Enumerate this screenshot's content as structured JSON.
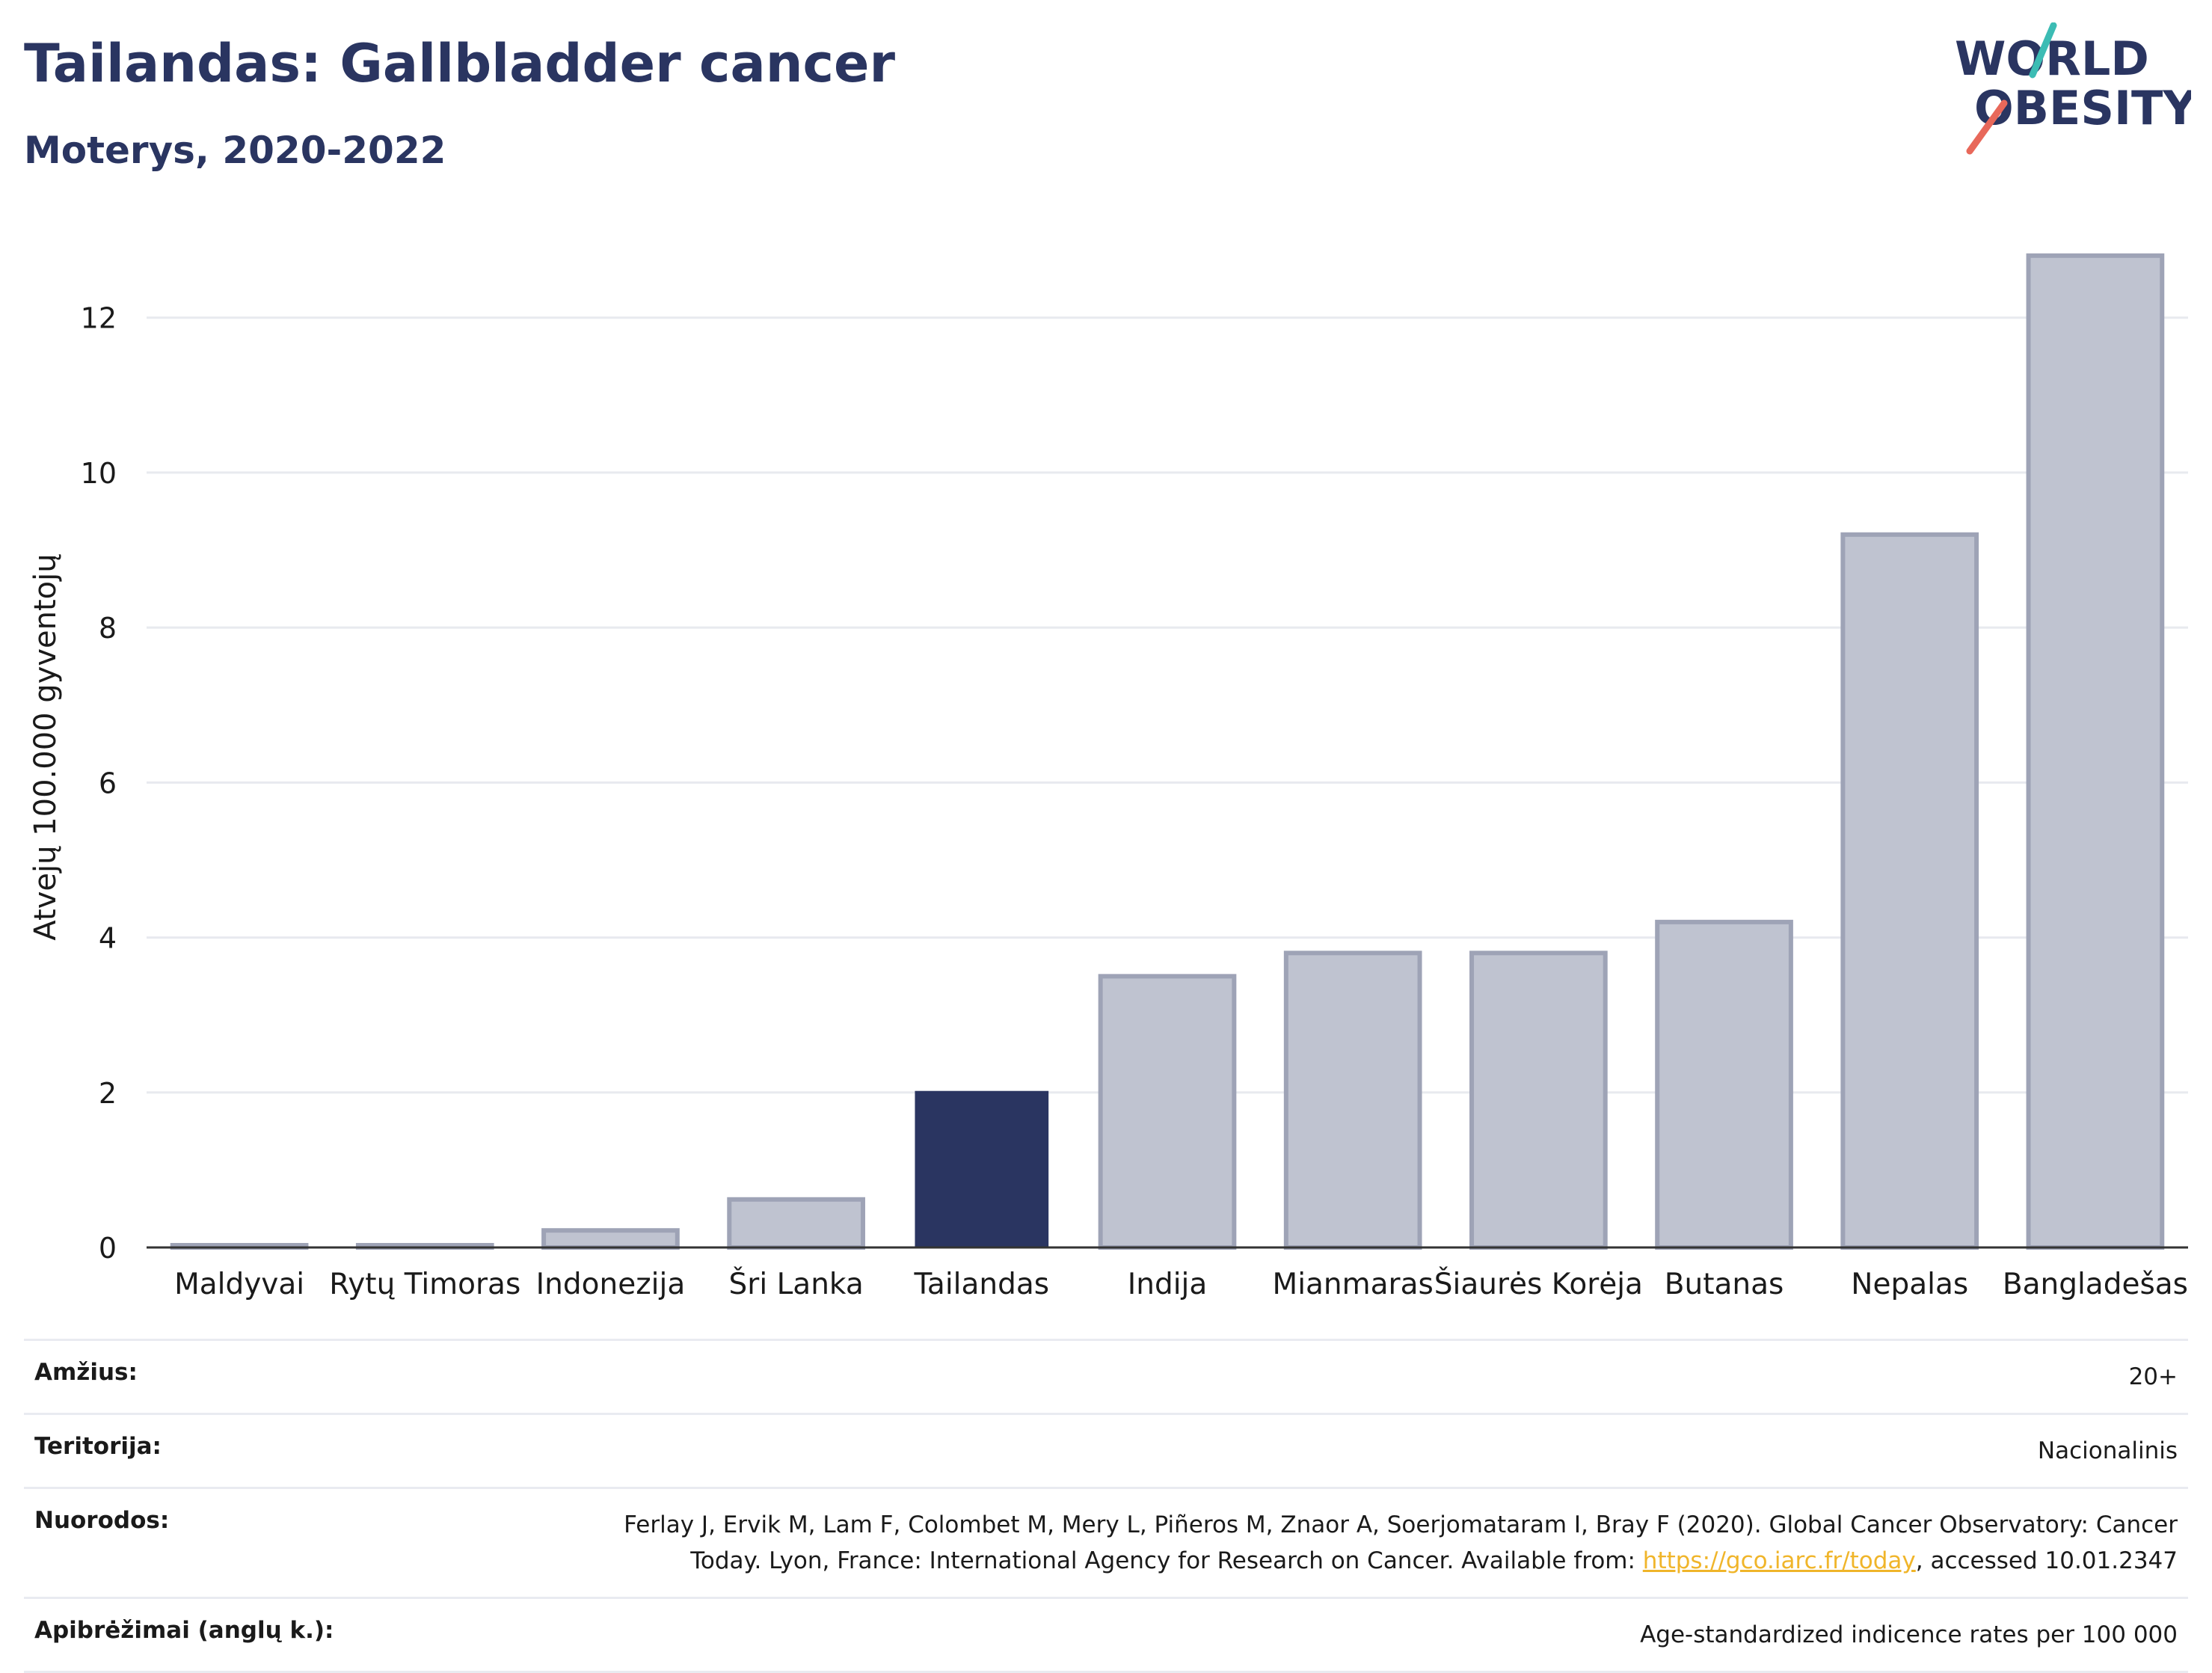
{
  "header": {
    "title": "Tailandas: Gallbladder cancer",
    "subtitle": "Moterys, 2020-2022"
  },
  "logo": {
    "line1": "WORLD",
    "line2": "OBESITY"
  },
  "chart_data": {
    "type": "bar",
    "title": "Tailandas: Gallbladder cancer",
    "subtitle": "Moterys, 2020-2022",
    "ylabel": "Atvejų 100.000 gyventojų",
    "xlabel": "",
    "ylim": [
      0,
      13.3
    ],
    "yticks": [
      0,
      2,
      4,
      6,
      8,
      10,
      12
    ],
    "grid": true,
    "categories": [
      "Maldyvai",
      "Rytų Timoras",
      "Indonezija",
      "Šri Lanka",
      "Tailandas",
      "Indija",
      "Mianmaras",
      "Šiaurės Korėja",
      "Butanas",
      "Nepalas",
      "Bangladešas"
    ],
    "values": [
      0.02,
      0.02,
      0.22,
      0.62,
      2.02,
      3.5,
      3.8,
      3.8,
      4.2,
      9.2,
      12.8
    ],
    "highlight": "Tailandas",
    "colors": {
      "highlight": "#2a3561",
      "others": "#bfc3d0",
      "others_border": "#9ea3b6"
    }
  },
  "footer": {
    "rows": [
      {
        "label": "Amžius:",
        "value": "20+"
      },
      {
        "label": "Teritorija:",
        "value": "Nacionalinis"
      }
    ],
    "refs_label": "Nuorodos:",
    "refs_text_1": "Ferlay J, Ervik M, Lam F, Colombet M, Mery L, Piñeros M, Znaor A, Soerjomataram I, Bray F (2020). Global Cancer Observatory: Cancer Today. Lyon, France: International Agency for Research on Cancer. Available from: ",
    "refs_link": "https://gco.iarc.fr/today",
    "refs_text_2": ", accessed 10.01.2347",
    "def_label": "Apibrėžimai (anglų k.):",
    "def_value": "Age-standardized indicence rates per 100 000"
  }
}
